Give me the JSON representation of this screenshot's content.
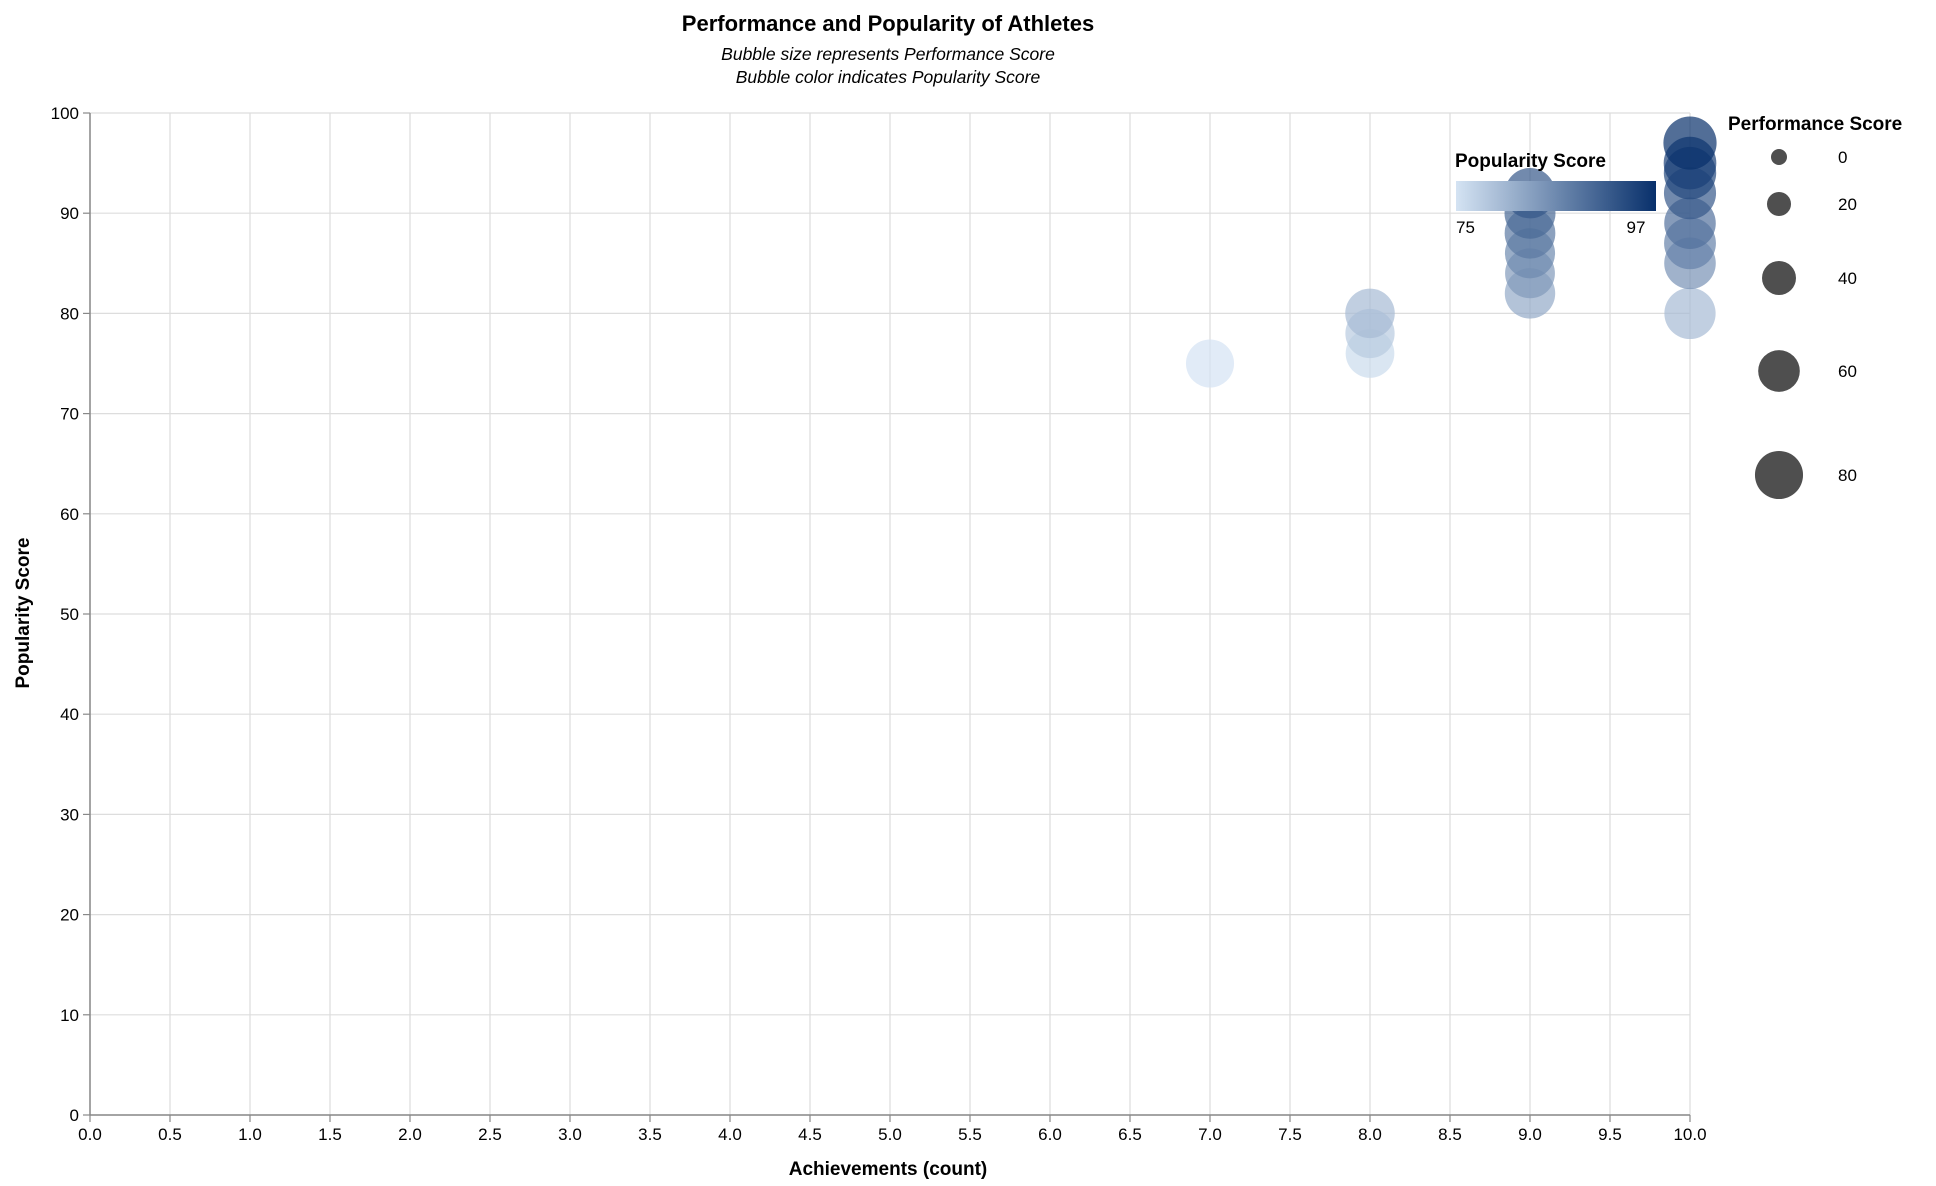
{
  "chart_data": {
    "type": "scatter",
    "title": "Performance and Popularity of Athletes",
    "subtitles": [
      "Bubble size represents Performance Score",
      "Bubble color indicates Popularity Score"
    ],
    "xlabel": "Achievements (count)",
    "ylabel": "Popularity Score",
    "xlim": [
      0,
      10
    ],
    "ylim": [
      0,
      100
    ],
    "x_ticks": [
      "0.0",
      "0.5",
      "1.0",
      "1.5",
      "2.0",
      "2.5",
      "3.0",
      "3.5",
      "4.0",
      "4.5",
      "5.0",
      "5.5",
      "6.0",
      "6.5",
      "7.0",
      "7.5",
      "8.0",
      "8.5",
      "9.0",
      "9.5",
      "10.0"
    ],
    "y_ticks": [
      "0",
      "10",
      "20",
      "30",
      "40",
      "50",
      "60",
      "70",
      "80",
      "90",
      "100"
    ],
    "grid": true,
    "color_legend": {
      "title": "Popularity Score",
      "min_label": "75",
      "max_label": "97",
      "domain": [
        75,
        97
      ],
      "color_low": "#d4e3f3",
      "color_high": "#08306b"
    },
    "size_legend": {
      "title": "Performance Score",
      "values": [
        0,
        20,
        40,
        60,
        80
      ],
      "labels": [
        "0",
        "20",
        "40",
        "60",
        "80"
      ],
      "color": "#4f4f4f"
    },
    "points": [
      {
        "achievements": 7,
        "popularity": 75,
        "performance": 80
      },
      {
        "achievements": 8,
        "popularity": 76,
        "performance": 82
      },
      {
        "achievements": 8,
        "popularity": 78,
        "performance": 84
      },
      {
        "achievements": 8,
        "popularity": 80,
        "performance": 85
      },
      {
        "achievements": 9,
        "popularity": 82,
        "performance": 88
      },
      {
        "achievements": 9,
        "popularity": 84,
        "performance": 86
      },
      {
        "achievements": 9,
        "popularity": 86,
        "performance": 87
      },
      {
        "achievements": 9,
        "popularity": 88,
        "performance": 89
      },
      {
        "achievements": 9,
        "popularity": 90,
        "performance": 90
      },
      {
        "achievements": 9,
        "popularity": 92,
        "performance": 88
      },
      {
        "achievements": 10,
        "popularity": 80,
        "performance": 91
      },
      {
        "achievements": 10,
        "popularity": 85,
        "performance": 92
      },
      {
        "achievements": 10,
        "popularity": 87,
        "performance": 93
      },
      {
        "achievements": 10,
        "popularity": 89,
        "performance": 92
      },
      {
        "achievements": 10,
        "popularity": 92,
        "performance": 94
      },
      {
        "achievements": 10,
        "popularity": 94,
        "performance": 95
      },
      {
        "achievements": 10,
        "popularity": 95,
        "performance": 96
      },
      {
        "achievements": 10,
        "popularity": 97,
        "performance": 98
      }
    ]
  }
}
